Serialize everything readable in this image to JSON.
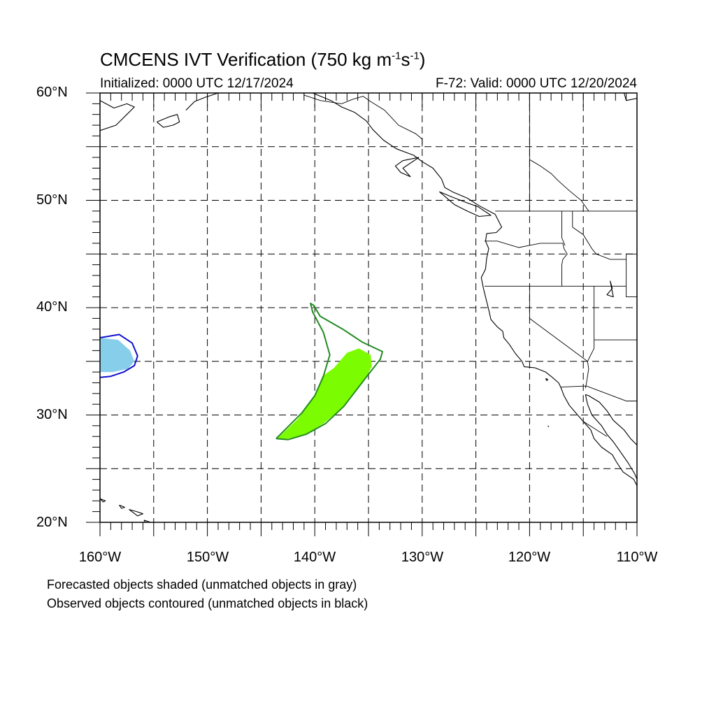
{
  "title": {
    "text": "CMCENS IVT Verification (750 kg m",
    "exp1": "-1",
    "mid": "s",
    "exp2": "-1",
    "close": ")"
  },
  "initialized": "Initialized: 0000 UTC 12/17/2024",
  "valid": "F-72: Valid: 0000 UTC 12/20/2024",
  "lat_labels": [
    "60°N",
    "50°N",
    "40°N",
    "30°N",
    "20°N"
  ],
  "lon_labels": [
    "160°W",
    "150°W",
    "140°W",
    "130°W",
    "120°W",
    "110°W"
  ],
  "legend": {
    "forecast": "Forecasted objects shaded (unmatched objects in gray)",
    "observed": "Observed objects contoured (unmatched objects in black)"
  },
  "colors": {
    "matched_pair_1_fill": "#87ceeb",
    "matched_pair_1_contour": "#1010d0",
    "matched_pair_2_fill": "#7cfc00",
    "matched_pair_2_contour": "#228b22",
    "coastline": "#000000",
    "grid": "#000000"
  },
  "map": {
    "projection": "cylindrical-equidistant",
    "lon_range": [
      -160,
      -110
    ],
    "lat_range": [
      20,
      60
    ],
    "grid_lon_step": 5,
    "grid_lat_step": 5,
    "gridline_style": "dashed"
  },
  "objects": [
    {
      "id": "pair-1",
      "forecast_fill": [
        [
          -160,
          37.2
        ],
        [
          -158.3,
          37.0
        ],
        [
          -157.2,
          36.0
        ],
        [
          -156.8,
          35.0
        ],
        [
          -157.4,
          34.3
        ],
        [
          -158.8,
          34.0
        ],
        [
          -160,
          34.0
        ]
      ],
      "observed_contour": [
        [
          -160,
          37.2
        ],
        [
          -158.2,
          37.5
        ],
        [
          -157.0,
          36.7
        ],
        [
          -156.5,
          35.5
        ],
        [
          -156.8,
          34.6
        ],
        [
          -157.8,
          34.0
        ],
        [
          -159.0,
          33.6
        ],
        [
          -160,
          33.5
        ]
      ]
    },
    {
      "id": "pair-2",
      "forecast_fill": [
        [
          -143.5,
          27.8
        ],
        [
          -141.6,
          29.6
        ],
        [
          -140.0,
          31.8
        ],
        [
          -139.3,
          33.6
        ],
        [
          -138.2,
          34.4
        ],
        [
          -137.0,
          35.8
        ],
        [
          -135.9,
          36.2
        ],
        [
          -134.8,
          35.6
        ],
        [
          -134.7,
          34.5
        ],
        [
          -135.3,
          33.4
        ],
        [
          -136.3,
          32.2
        ],
        [
          -137.5,
          30.6
        ],
        [
          -139.2,
          29.2
        ],
        [
          -141.0,
          28.1
        ],
        [
          -143.0,
          27.7
        ]
      ],
      "observed_contour": [
        [
          -143.6,
          27.8
        ],
        [
          -142.6,
          28.8
        ],
        [
          -141.2,
          30.2
        ],
        [
          -140.0,
          31.8
        ],
        [
          -139.2,
          33.6
        ],
        [
          -138.6,
          35.6
        ],
        [
          -139.2,
          37.7
        ],
        [
          -140.2,
          39.6
        ],
        [
          -140.4,
          40.4
        ],
        [
          -140.1,
          40.2
        ],
        [
          -139.5,
          39.2
        ],
        [
          -137.4,
          38.0
        ],
        [
          -135.6,
          36.8
        ],
        [
          -133.7,
          35.9
        ],
        [
          -133.9,
          35.2
        ],
        [
          -135.0,
          33.8
        ],
        [
          -137.3,
          30.8
        ],
        [
          -139.0,
          29.2
        ],
        [
          -140.8,
          28.2
        ],
        [
          -142.5,
          27.7
        ],
        [
          -143.6,
          27.8
        ]
      ]
    }
  ],
  "coastlines": [
    [
      [
        -160,
        56.5
      ],
      [
        -158.5,
        57.0
      ],
      [
        -157.5,
        58.0
      ],
      [
        -156.8,
        58.7
      ],
      [
        -157.5,
        59.0
      ],
      [
        -158.7,
        58.6
      ],
      [
        -160,
        59.3
      ]
    ],
    [
      [
        -154.7,
        57.3
      ],
      [
        -153.5,
        57.8
      ],
      [
        -152.8,
        58.0
      ],
      [
        -152.6,
        57.3
      ],
      [
        -153.2,
        57.0
      ],
      [
        -154.1,
        56.8
      ],
      [
        -154.7,
        57.3
      ]
    ],
    [
      [
        -152.0,
        58.4
      ],
      [
        -151.2,
        59.2
      ],
      [
        -150.2,
        59.6
      ],
      [
        -149.0,
        60
      ]
    ],
    [
      [
        -140.2,
        60
      ],
      [
        -138.5,
        59.3
      ],
      [
        -137.5,
        58.7
      ],
      [
        -136.3,
        58.2
      ],
      [
        -135.2,
        57.4
      ],
      [
        -134.6,
        56.6
      ],
      [
        -133.6,
        55.6
      ],
      [
        -132.4,
        54.8
      ],
      [
        -130.8,
        54.2
      ],
      [
        -130.0,
        53.6
      ],
      [
        -129.0,
        53.0
      ],
      [
        -128.2,
        52.0
      ],
      [
        -127.9,
        51.2
      ],
      [
        -127.2,
        50.8
      ],
      [
        -125.8,
        50.2
      ],
      [
        -124.7,
        49.5
      ],
      [
        -123.2,
        48.7
      ],
      [
        -122.6,
        47.5
      ],
      [
        -123.1,
        47.0
      ],
      [
        -124.0,
        46.9
      ],
      [
        -124.1,
        46.2
      ],
      [
        -123.8,
        45.5
      ],
      [
        -124.0,
        44.6
      ],
      [
        -124.1,
        43.6
      ],
      [
        -124.5,
        42.8
      ],
      [
        -124.3,
        41.8
      ],
      [
        -124.1,
        41.0
      ],
      [
        -123.8,
        39.8
      ],
      [
        -123.6,
        38.9
      ],
      [
        -123.0,
        38.2
      ],
      [
        -122.5,
        37.8
      ],
      [
        -122.4,
        37.2
      ],
      [
        -121.9,
        36.6
      ],
      [
        -121.3,
        35.7
      ],
      [
        -120.7,
        35.0
      ],
      [
        -120.5,
        34.5
      ],
      [
        -119.5,
        34.4
      ],
      [
        -118.5,
        34.0
      ],
      [
        -118.0,
        33.6
      ],
      [
        -117.3,
        33.0
      ],
      [
        -117.1,
        32.6
      ],
      [
        -116.8,
        31.8
      ],
      [
        -116.3,
        30.9
      ],
      [
        -115.7,
        30.2
      ],
      [
        -115.0,
        29.4
      ],
      [
        -114.3,
        28.6
      ],
      [
        -114.0,
        27.8
      ],
      [
        -113.3,
        27.0
      ],
      [
        -112.3,
        26.3
      ],
      [
        -111.9,
        25.6
      ],
      [
        -111.3,
        24.7
      ],
      [
        -110.3,
        24.0
      ],
      [
        -110.0,
        23.4
      ]
    ],
    [
      [
        -114.8,
        31.9
      ],
      [
        -114.6,
        31.0
      ],
      [
        -114.2,
        30.0
      ],
      [
        -113.3,
        29.0
      ],
      [
        -112.8,
        28.2
      ],
      [
        -112.2,
        27.5
      ],
      [
        -111.5,
        26.5
      ],
      [
        -110.8,
        25.5
      ],
      [
        -110.2,
        24.5
      ],
      [
        -110.0,
        24.0
      ]
    ],
    [
      [
        -110.0,
        27.2
      ],
      [
        -110.6,
        27.8
      ],
      [
        -111.2,
        28.6
      ],
      [
        -112.2,
        29.5
      ],
      [
        -112.8,
        30.4
      ],
      [
        -113.5,
        31.2
      ],
      [
        -114.5,
        31.8
      ],
      [
        -114.8,
        31.9
      ]
    ],
    [
      [
        -130.3,
        54.0
      ],
      [
        -131.8,
        53.7
      ],
      [
        -132.5,
        53.2
      ],
      [
        -132.0,
        52.6
      ],
      [
        -131.1,
        52.2
      ],
      [
        -131.8,
        53.0
      ],
      [
        -130.3,
        54.0
      ]
    ],
    [
      [
        -128.4,
        50.8
      ],
      [
        -127.2,
        50.3
      ],
      [
        -125.9,
        49.8
      ],
      [
        -124.8,
        49.4
      ],
      [
        -123.6,
        48.6
      ],
      [
        -124.7,
        48.5
      ],
      [
        -125.8,
        49.0
      ],
      [
        -127.0,
        49.6
      ],
      [
        -128.4,
        50.8
      ]
    ],
    [
      [
        -160,
        22.2
      ],
      [
        -159.5,
        22.0
      ],
      [
        -159.7,
        21.9
      ],
      [
        -160,
        22.2
      ]
    ],
    [
      [
        -158.2,
        21.6
      ],
      [
        -157.7,
        21.4
      ],
      [
        -158.0,
        21.3
      ],
      [
        -158.2,
        21.6
      ]
    ],
    [
      [
        -157.3,
        21.2
      ],
      [
        -156.6,
        21.0
      ],
      [
        -156.0,
        20.8
      ],
      [
        -156.5,
        20.6
      ],
      [
        -157.3,
        21.2
      ]
    ],
    [
      [
        -155.9,
        20.2
      ],
      [
        -155.0,
        19.9
      ],
      [
        -155.5,
        19.6
      ],
      [
        -155.9,
        20.2
      ]
    ],
    [
      [
        -118.5,
        33.4
      ],
      [
        -118.3,
        33.3
      ],
      [
        -118.4,
        33.2
      ],
      [
        -118.5,
        33.4
      ]
    ],
    [
      [
        -118.3,
        29.0
      ],
      [
        -118.2,
        28.9
      ]
    ],
    [
      [
        -112.5,
        42.5
      ],
      [
        -112.3,
        41.8
      ],
      [
        -112.8,
        41.2
      ],
      [
        -112.2,
        41.0
      ],
      [
        -112.5,
        42.5
      ]
    ],
    [
      [
        -110,
        59.5
      ],
      [
        -111,
        59.3
      ],
      [
        -111.2,
        60
      ]
    ]
  ],
  "borders": [
    [
      [
        -141,
        60
      ],
      [
        -141,
        59.8
      ],
      [
        -139.5,
        59.3
      ],
      [
        -137.5,
        59.0
      ],
      [
        -136.5,
        59.4
      ],
      [
        -135.5,
        59.7
      ],
      [
        -134.8,
        59.2
      ],
      [
        -133.5,
        58.4
      ],
      [
        -132.2,
        57.0
      ],
      [
        -130.6,
        56.2
      ],
      [
        -130.0,
        55.7
      ],
      [
        -130.0,
        55.0
      ]
    ],
    [
      [
        -123.2,
        49.0
      ],
      [
        -110,
        49.0
      ]
    ],
    [
      [
        -120,
        49.0
      ],
      [
        -120,
        60
      ]
    ],
    [
      [
        -120,
        53.8
      ],
      [
        -119,
        53.2
      ],
      [
        -118,
        52.5
      ],
      [
        -117.3,
        51.8
      ],
      [
        -116.3,
        50.9
      ],
      [
        -115.2,
        50.0
      ],
      [
        -114.5,
        49.0
      ]
    ],
    [
      [
        -116.9,
        46.0
      ],
      [
        -116.8,
        45.5
      ],
      [
        -116.5,
        45.0
      ],
      [
        -116.9,
        44.5
      ],
      [
        -117.0,
        44.0
      ],
      [
        -117.0,
        42.0
      ]
    ],
    [
      [
        -124.2,
        46.2
      ],
      [
        -123.0,
        46.2
      ],
      [
        -121.0,
        45.6
      ],
      [
        -119.0,
        46.0
      ],
      [
        -116.9,
        46.0
      ]
    ],
    [
      [
        -124.2,
        42.0
      ],
      [
        -111.0,
        42.0
      ]
    ],
    [
      [
        -120.0,
        42.0
      ],
      [
        -120.0,
        39.0
      ],
      [
        -114.6,
        35.0
      ]
    ],
    [
      [
        -117.0,
        49.0
      ],
      [
        -117.0,
        46.5
      ],
      [
        -116.7,
        45.8
      ]
    ],
    [
      [
        -116.0,
        49.0
      ],
      [
        -116.0,
        47.5
      ],
      [
        -115.0,
        46.8
      ],
      [
        -114.2,
        45.5
      ],
      [
        -113.8,
        45.0
      ],
      [
        -112.5,
        44.5
      ],
      [
        -111.0,
        44.5
      ]
    ],
    [
      [
        -114.0,
        42.0
      ],
      [
        -114.0,
        37.0
      ],
      [
        -114.0,
        36.2
      ],
      [
        -114.6,
        35.0
      ]
    ],
    [
      [
        -114.0,
        37.0
      ],
      [
        -110.0,
        37.0
      ]
    ],
    [
      [
        -111.0,
        45.0
      ],
      [
        -110.0,
        45.0
      ]
    ],
    [
      [
        -111.0,
        45.0
      ],
      [
        -111.0,
        41.0
      ],
      [
        -110.0,
        41.0
      ]
    ],
    [
      [
        -117.1,
        32.6
      ],
      [
        -114.7,
        32.7
      ],
      [
        -111.0,
        31.3
      ],
      [
        -110.0,
        31.3
      ]
    ],
    [
      [
        -114.6,
        35.0
      ],
      [
        -114.5,
        34.3
      ],
      [
        -114.7,
        33.0
      ],
      [
        -114.8,
        32.5
      ]
    ],
    [
      [
        -115.0,
        29.4
      ],
      [
        -112.8,
        28.0
      ]
    ]
  ]
}
